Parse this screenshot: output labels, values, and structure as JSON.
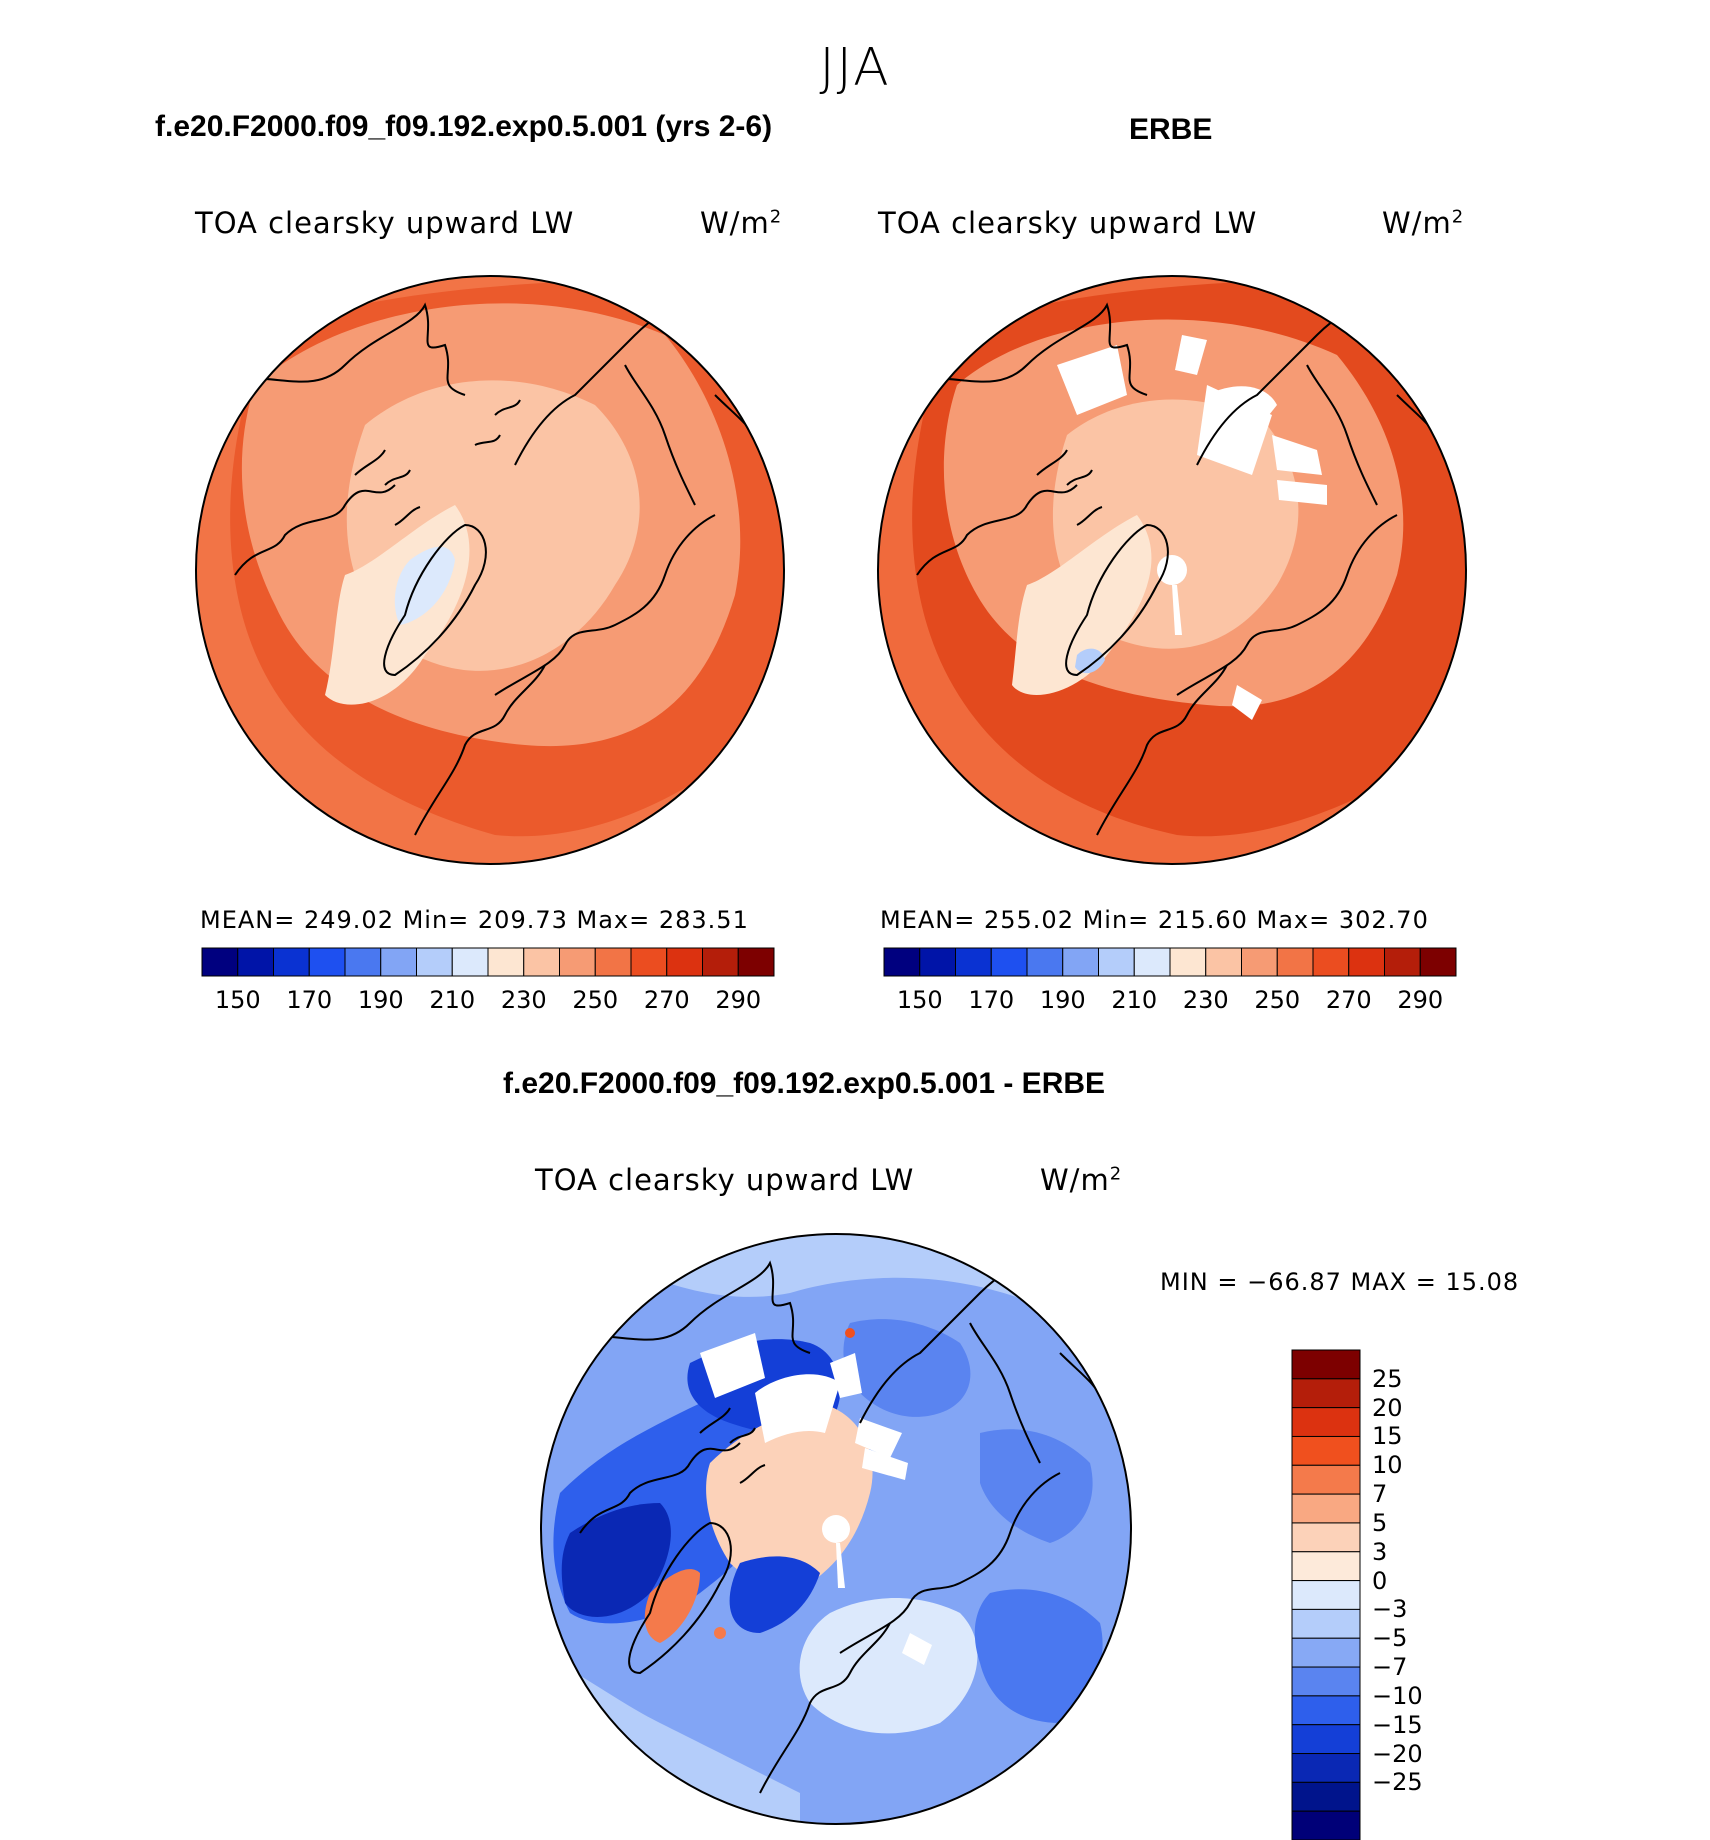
{
  "figure": {
    "season": "JJA"
  },
  "panels": [
    {
      "id": "model",
      "header": "f.e20.F2000.f09_f09.192.exp0.5.001 (yrs 2-6)",
      "variable": "TOA clearsky upward LW",
      "units": "W/m",
      "units_exp": "2",
      "stats": {
        "mean": "249.02",
        "min": "209.73",
        "max": "283.51"
      },
      "stats_text": "MEAN= 249.02   Min= 209.73   Max= 283.51"
    },
    {
      "id": "obs",
      "header": "ERBE",
      "variable": "TOA clearsky upward LW",
      "units": "W/m",
      "units_exp": "2",
      "stats": {
        "mean": "255.02",
        "min": "215.60",
        "max": "302.70"
      },
      "stats_text": "MEAN= 255.02   Min= 215.60   Max= 302.70"
    },
    {
      "id": "diff",
      "header": "f.e20.F2000.f09_f09.192.exp0.5.001 - ERBE",
      "variable": "TOA clearsky upward LW",
      "units": "W/m",
      "units_exp": "2",
      "stats": {
        "min": "−66.87",
        "max": "15.08"
      },
      "stats_text": "MIN = −66.87  MAX =   15.08"
    }
  ],
  "abs_colorbar": {
    "colors": [
      "#00007f",
      "#0014a8",
      "#0a32d2",
      "#1e50f0",
      "#4a78f0",
      "#82a5f5",
      "#b4cdfa",
      "#dce9fc",
      "#fde6d2",
      "#fbc4a5",
      "#f69b74",
      "#f27446",
      "#eb4d20",
      "#dc3210",
      "#b41e0a",
      "#7d0000"
    ],
    "tick_labels": [
      "150",
      "170",
      "190",
      "210",
      "230",
      "250",
      "270",
      "290"
    ]
  },
  "diff_colorbar": {
    "colors": [
      "#7d0000",
      "#b41e0a",
      "#dc3210",
      "#f0501e",
      "#f47a4b",
      "#f9a882",
      "#fcd2b9",
      "#fdeada",
      "#dce9fc",
      "#b4cdfa",
      "#87a9f5",
      "#5a84f0",
      "#2e5fec",
      "#143fd7",
      "#0a28b4",
      "#00148c",
      "#000078"
    ],
    "tick_labels": [
      "25",
      "20",
      "15",
      "10",
      "7",
      "5",
      "3",
      "0",
      "−3",
      "−5",
      "−7",
      "−10",
      "−15",
      "−20",
      "−25"
    ]
  },
  "map_palette": {
    "coast": "#000000",
    "missing": "#ffffff"
  }
}
